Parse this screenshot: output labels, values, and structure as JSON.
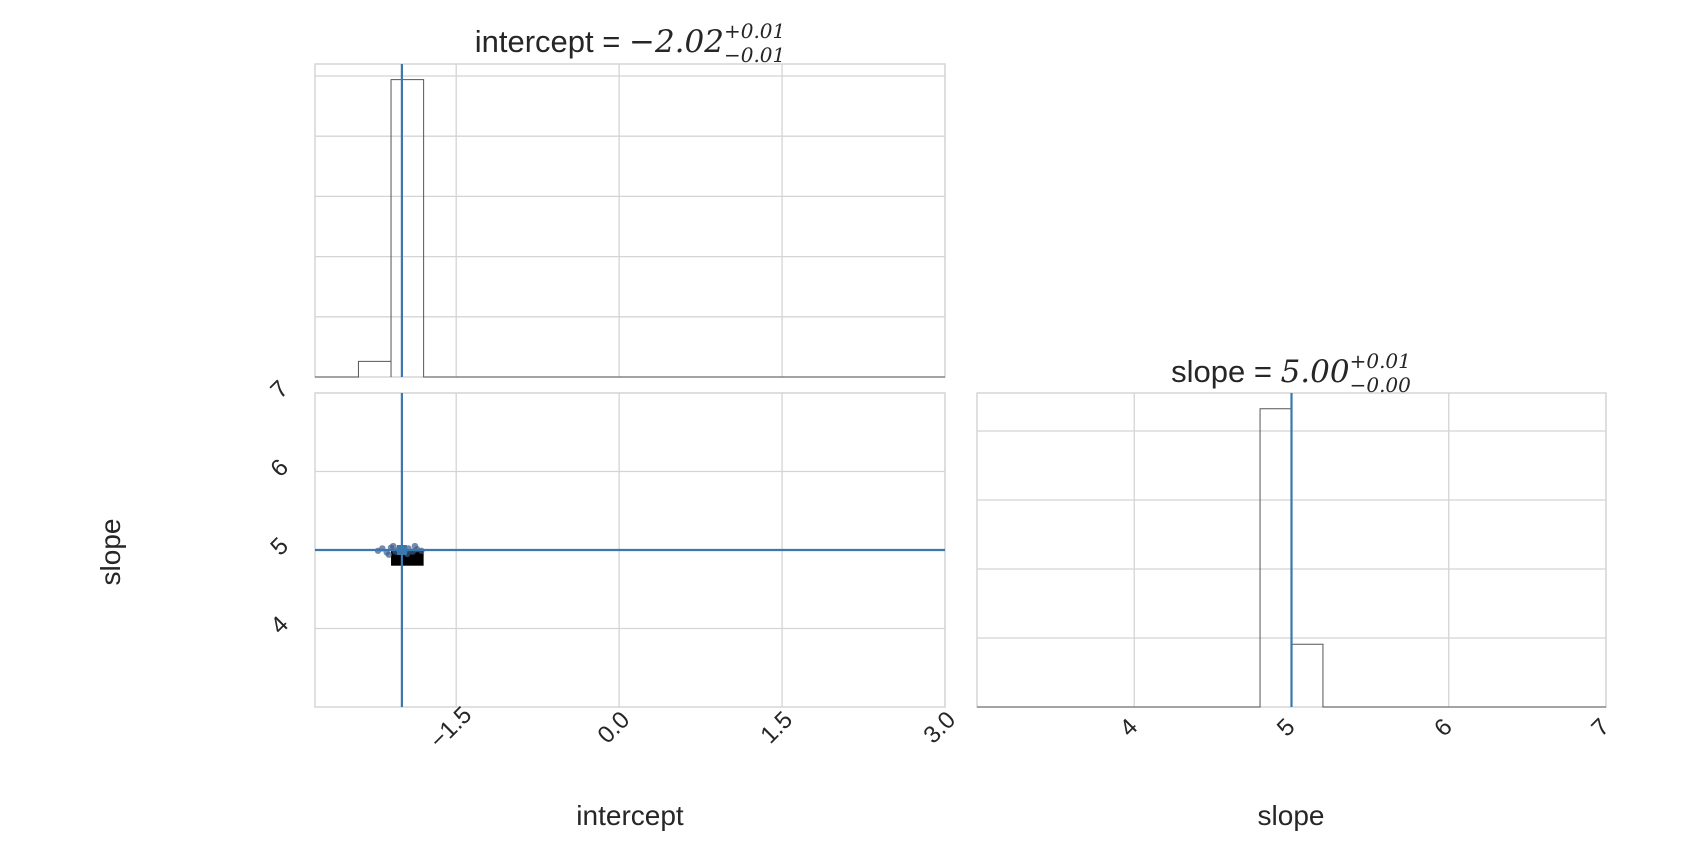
{
  "chart_data": [
    {
      "type": "histogram",
      "panel": "intercept-marginal",
      "title_prefix": "intercept = ",
      "title_value": "−2.02",
      "title_sup": "+0.01",
      "title_sub": "−0.01",
      "xlim": [
        -2.8,
        3.0
      ],
      "ylim": [
        0,
        1
      ],
      "bin_edges": [
        -2.4,
        -2.1,
        -1.8,
        -1.5
      ],
      "counts": [
        0.05,
        0.95,
        0.0
      ],
      "truth": -2.0,
      "grid": true
    },
    {
      "type": "scatter",
      "panel": "intercept-slope-joint",
      "xlabel": "intercept",
      "ylabel": "slope",
      "xlim": [
        -2.8,
        3.0
      ],
      "ylim": [
        3.0,
        7.0
      ],
      "xticks": [
        -1.5,
        0.0,
        1.5,
        3.0
      ],
      "xtick_labels": [
        "−1.5",
        "0.0",
        "1.5",
        "3.0"
      ],
      "yticks": [
        4,
        5,
        6,
        7
      ],
      "ytick_labels": [
        "4",
        "5",
        "6",
        "7"
      ],
      "truth": {
        "intercept": -2.0,
        "slope": 5.0
      },
      "density_blocks": [
        {
          "x0": -2.1,
          "x1": -1.8,
          "y0": 4.8,
          "y1": 5.0
        }
      ],
      "points": [
        {
          "x": -2.22,
          "y": 4.99
        },
        {
          "x": -2.18,
          "y": 5.02
        },
        {
          "x": -2.14,
          "y": 4.97
        },
        {
          "x": -2.1,
          "y": 5.03
        },
        {
          "x": -2.06,
          "y": 4.98
        },
        {
          "x": -2.03,
          "y": 5.01
        },
        {
          "x": -2.0,
          "y": 5.0
        },
        {
          "x": -1.97,
          "y": 4.99
        },
        {
          "x": -1.94,
          "y": 5.02
        },
        {
          "x": -1.9,
          "y": 4.98
        },
        {
          "x": -1.86,
          "y": 5.01
        },
        {
          "x": -1.82,
          "y": 4.99
        },
        {
          "x": -2.08,
          "y": 5.05
        },
        {
          "x": -1.95,
          "y": 4.95
        },
        {
          "x": -2.12,
          "y": 4.94
        },
        {
          "x": -1.88,
          "y": 5.05
        }
      ],
      "grid": true
    },
    {
      "type": "histogram",
      "panel": "slope-marginal",
      "title_prefix": "slope = ",
      "title_value": "5.00",
      "title_sup": "+0.01",
      "title_sub": "−0.00",
      "xlabel": "slope",
      "xlim": [
        3.0,
        7.0
      ],
      "ylim": [
        0,
        1
      ],
      "xticks": [
        4,
        5,
        6,
        7
      ],
      "xtick_labels": [
        "4",
        "5",
        "6",
        "7"
      ],
      "bin_edges": [
        4.8,
        5.0,
        5.2
      ],
      "counts": [
        0.95,
        0.2
      ],
      "truth": 5.0,
      "grid": true
    }
  ],
  "colors": {
    "truth": "#3a78ad",
    "hist": "#555555",
    "grid": "#d4d4d4",
    "frame": "#cfcfcf",
    "text": "#262626",
    "points": "#3a5a8c"
  }
}
